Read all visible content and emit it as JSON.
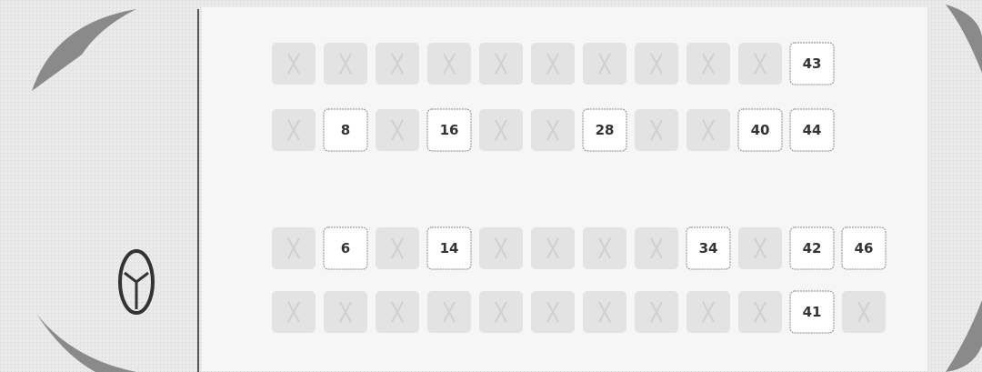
{
  "seat_map": {
    "rows": [
      [
        null,
        null,
        null,
        null,
        null,
        null,
        null,
        null,
        null,
        null,
        "43"
      ],
      [
        null,
        "8",
        null,
        "16",
        null,
        null,
        "28",
        null,
        null,
        "40",
        "44"
      ],
      [
        null,
        "6",
        null,
        "14",
        null,
        null,
        null,
        null,
        "34",
        null,
        "42",
        "46"
      ],
      [
        null,
        null,
        null,
        null,
        null,
        null,
        null,
        null,
        null,
        null,
        "41",
        null
      ]
    ]
  }
}
